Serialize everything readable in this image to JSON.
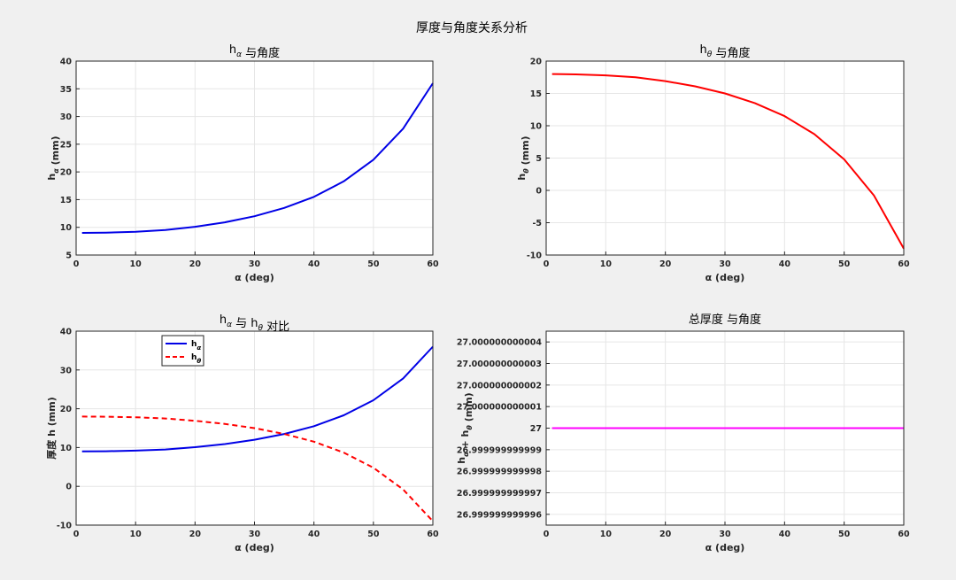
{
  "suptitle": "厚度与角度关系分析",
  "chart_data": [
    {
      "type": "line",
      "title": "h_α 与角度",
      "xlabel": "α (deg)",
      "ylabel": "h_α (mm)",
      "xlim": [
        0,
        60
      ],
      "ylim": [
        5,
        40
      ],
      "xticks": [
        "0",
        "10",
        "20",
        "30",
        "40",
        "50",
        "60"
      ],
      "yticks": [
        "5",
        "10",
        "15",
        "20",
        "25",
        "30",
        "35",
        "40"
      ],
      "grid": true,
      "series": [
        {
          "color": "#0000e6",
          "style": "solid",
          "x": [
            1,
            5,
            10,
            15,
            20,
            25,
            30,
            35,
            40,
            45,
            50,
            55,
            60
          ],
          "y": [
            9.0,
            9.05,
            9.2,
            9.5,
            10.1,
            10.9,
            12.0,
            13.5,
            15.5,
            18.3,
            22.2,
            27.8,
            36.0
          ]
        }
      ]
    },
    {
      "type": "line",
      "title": "h_θ 与角度",
      "xlabel": "α (deg)",
      "ylabel": "h_θ (mm)",
      "xlim": [
        0,
        60
      ],
      "ylim": [
        -10,
        20
      ],
      "xticks": [
        "0",
        "10",
        "20",
        "30",
        "40",
        "50",
        "60"
      ],
      "yticks": [
        "-10",
        "-5",
        "0",
        "5",
        "10",
        "15",
        "20"
      ],
      "grid": true,
      "series": [
        {
          "color": "#ff0000",
          "style": "solid",
          "x": [
            1,
            5,
            10,
            15,
            20,
            25,
            30,
            35,
            40,
            45,
            50,
            55,
            60
          ],
          "y": [
            18.0,
            17.95,
            17.8,
            17.5,
            16.9,
            16.1,
            15.0,
            13.5,
            11.5,
            8.7,
            4.8,
            -0.8,
            -9.0
          ]
        }
      ]
    },
    {
      "type": "line",
      "title": "h_α 与 h_θ 对比",
      "xlabel": "α (deg)",
      "ylabel": "厚度 h (mm)",
      "xlim": [
        0,
        60
      ],
      "ylim": [
        -10,
        40
      ],
      "xticks": [
        "0",
        "10",
        "20",
        "30",
        "40",
        "50",
        "60"
      ],
      "yticks": [
        "-10",
        "0",
        "10",
        "20",
        "30",
        "40"
      ],
      "grid": true,
      "legend_position": "top-left",
      "series": [
        {
          "name": "h_α",
          "color": "#0000e6",
          "style": "solid",
          "x": [
            1,
            5,
            10,
            15,
            20,
            25,
            30,
            35,
            40,
            45,
            50,
            55,
            60
          ],
          "y": [
            9.0,
            9.05,
            9.2,
            9.5,
            10.1,
            10.9,
            12.0,
            13.5,
            15.5,
            18.3,
            22.2,
            27.8,
            36.0
          ]
        },
        {
          "name": "h_θ",
          "color": "#ff0000",
          "style": "dashed",
          "x": [
            1,
            5,
            10,
            15,
            20,
            25,
            30,
            35,
            40,
            45,
            50,
            55,
            60
          ],
          "y": [
            18.0,
            17.95,
            17.8,
            17.5,
            16.9,
            16.1,
            15.0,
            13.5,
            11.5,
            8.7,
            4.8,
            -0.8,
            -9.0
          ]
        }
      ]
    },
    {
      "type": "line",
      "title": "总厚度 与角度",
      "xlabel": "α (deg)",
      "ylabel": "h_α + h_θ (mm)",
      "xlim": [
        0,
        60
      ],
      "ylim": [
        26.9999999999995,
        27.0000000000004
      ],
      "xticks": [
        "0",
        "10",
        "20",
        "30",
        "40",
        "50",
        "60"
      ],
      "yticks": [
        "26.999999999996",
        "26.999999999997",
        "26.999999999998",
        "26.999999999999",
        "27",
        "27.000000000001",
        "27.000000000002",
        "27.000000000003",
        "27.000000000004"
      ],
      "grid": true,
      "series": [
        {
          "color": "#ff00ff",
          "style": "solid",
          "x": [
            1,
            10,
            20,
            30,
            40,
            50,
            60
          ],
          "y": [
            27,
            27,
            27,
            27,
            27,
            27,
            27
          ]
        }
      ]
    }
  ]
}
